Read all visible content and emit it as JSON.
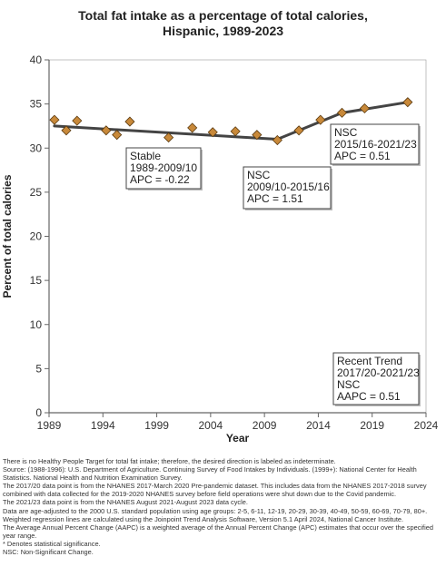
{
  "chart_data": {
    "type": "line",
    "title_lines": [
      "Total fat intake as a percentage of total calories,",
      "Hispanic,  1989-2023"
    ],
    "xlabel": "Year",
    "ylabel": "Percent of total calories",
    "xlim": [
      1989,
      2024
    ],
    "ylim": [
      0,
      40
    ],
    "x_ticks": [
      1989,
      1994,
      1999,
      2004,
      2009,
      2014,
      2019,
      2024
    ],
    "y_ticks": [
      0,
      5,
      10,
      15,
      20,
      25,
      30,
      35,
      40
    ],
    "grid": false,
    "series": [
      {
        "x": [
          1989.5,
          1990.6,
          1991.6,
          1994.3,
          1995.3,
          1996.5,
          2000.1,
          2002.3,
          2004.2,
          2006.3,
          2008.3,
          2010.2,
          2012.2,
          2014.2,
          2016.2,
          2018.3,
          2022.3
        ],
        "values": [
          33.2,
          32.0,
          33.1,
          32.0,
          31.5,
          33.0,
          31.2,
          32.3,
          31.8,
          31.9,
          31.5,
          30.9,
          32.0,
          33.2,
          34.0,
          34.5,
          35.2
        ]
      }
    ],
    "trend": {
      "x": [
        1989.5,
        2010.2,
        2016.2,
        2022.3
      ],
      "values": [
        32.5,
        31.0,
        34.0,
        35.2
      ]
    },
    "annotations": [
      {
        "lines": [
          "Stable",
          "1989-2009/10",
          "APC = -0.22"
        ]
      },
      {
        "lines": [
          "NSC",
          "2009/10-2015/16",
          "APC =  1.51"
        ]
      },
      {
        "lines": [
          "NSC",
          "2015/16-2021/23",
          "APC =  0.51"
        ]
      },
      {
        "lines": [
          "Recent Trend",
          "2017/20-2021/23",
          "NSC",
          "AAPC =  0.51"
        ]
      }
    ],
    "colors": {
      "marker": "#c8893a",
      "marker_stroke": "#5a3a10",
      "trend": "#444444",
      "axis": "#666666"
    }
  },
  "footnotes": [
    "There is no Healthy People Target for total fat intake; therefore, the desired direction is labeled as indeterminate.",
    "Source: (1988-1996): U.S. Department of Agriculture. Continuing Survey of Food Intakes by Individuals. (1999+): National Center for Health Statistics. National Health and Nutrition Examination Survey.",
    "The 2017/20 data point is from the NHANES 2017-March 2020 Pre-pandemic dataset. This includes data from the NHANES 2017-2018 survey combined with data collected for the 2019-2020 NHANES survey before field operations were shut down due to the Covid pandemic.",
    "The 2021/23 data point is from the NHANES August 2021-August 2023 data cycle.",
    "Data are age-adjusted to the 2000 U.S. standard population using age groups: 2-5, 6-11, 12-19, 20-29, 30-39, 40-49, 50-59, 60-69, 70-79, 80+.",
    "Weighted regression lines are calculated using the Joinpoint Trend Analysis Software, Version 5.1 April 2024, National Cancer Institute.",
    "The Average Annual Percent Change (AAPC) is a weighted average of the Annual Percent Change (APC) estimates that occur over the specified year range.",
    "* Denotes statistical significance.",
    "NSC: Non-Significant Change."
  ]
}
